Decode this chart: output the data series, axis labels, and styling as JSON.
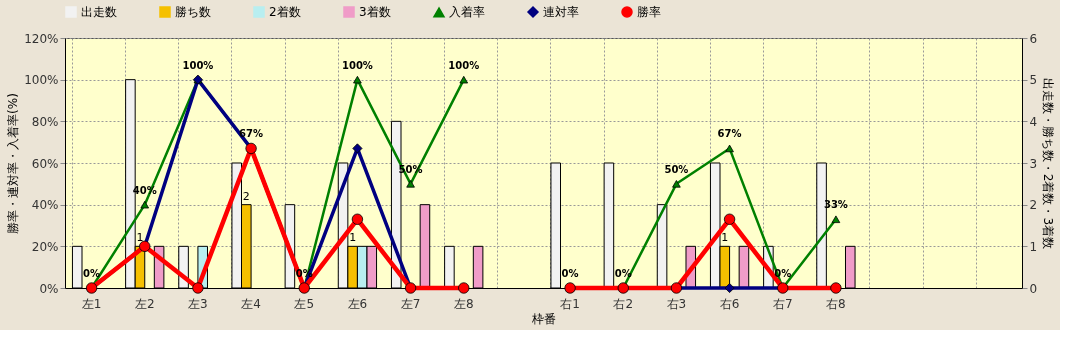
{
  "chart_data": {
    "type": "bar",
    "xlabel": "枠番",
    "ylabel": "勝率・連対率・入着率(%)",
    "y2label": "出走数・勝ち数・2着数・3着数",
    "categories": [
      "左1",
      "左2",
      "左3",
      "左4",
      "左5",
      "左6",
      "左7",
      "左8",
      null,
      "右1",
      "右2",
      "右3",
      "右6",
      "右7",
      "右8",
      null,
      null,
      null
    ],
    "series": [
      {
        "name": "出走数",
        "axis": "y2",
        "color": "#f2f2f2",
        "values": [
          1,
          5,
          1,
          3,
          2,
          3,
          4,
          1,
          null,
          3,
          3,
          2,
          3,
          1,
          3,
          null,
          null,
          null
        ]
      },
      {
        "name": "勝ち数",
        "axis": "y2",
        "color": "#f5c000",
        "values": [
          0,
          1,
          0,
          2,
          0,
          1,
          0,
          0,
          null,
          0,
          0,
          0,
          1,
          0,
          0,
          null,
          null,
          null
        ],
        "value_labels": [
          null,
          "1",
          null,
          "2",
          null,
          "1",
          null,
          null,
          null,
          null,
          null,
          null,
          "1",
          null,
          null,
          null,
          null,
          null
        ]
      },
      {
        "name": "2着数",
        "axis": "y2",
        "color": "#b8eef0",
        "values": [
          0,
          0,
          1,
          0,
          0,
          1,
          0,
          0,
          null,
          0,
          0,
          0,
          0,
          0,
          0,
          null,
          null,
          null
        ]
      },
      {
        "name": "3着数",
        "axis": "y2",
        "color": "#f09cc8",
        "values": [
          0,
          1,
          0,
          0,
          0,
          1,
          2,
          1,
          null,
          0,
          0,
          1,
          1,
          0,
          1,
          null,
          null,
          null
        ]
      },
      {
        "name": "入着率",
        "type": "line",
        "marker": "triangle",
        "color": "#008000",
        "values": [
          0,
          40,
          100,
          67,
          0,
          100,
          50,
          100,
          null,
          0,
          0,
          50,
          67,
          0,
          33,
          null,
          null,
          null
        ],
        "value_labels": [
          "0%",
          "40%",
          "100%",
          "67%",
          "0%",
          "100%",
          "50%",
          "100%",
          null,
          "0%",
          "0%",
          "50%",
          "67%",
          "0%",
          "33%",
          null,
          null,
          null
        ]
      },
      {
        "name": "連対率",
        "type": "line",
        "marker": "diamond",
        "color": "#000080",
        "values": [
          0,
          20,
          100,
          67,
          0,
          67,
          0,
          0,
          null,
          0,
          0,
          0,
          0,
          0,
          0,
          null,
          null,
          null
        ]
      },
      {
        "name": "勝率",
        "type": "line",
        "marker": "circle",
        "color": "#ff0000",
        "values": [
          0,
          20,
          0,
          67,
          0,
          33,
          0,
          0,
          null,
          0,
          0,
          0,
          33,
          0,
          0,
          null,
          null,
          null
        ]
      }
    ],
    "ylim": [
      0,
      120
    ],
    "yticks": [
      {
        "value": 0,
        "label": "0%"
      },
      {
        "value": 20,
        "label": "20%"
      },
      {
        "value": 40,
        "label": "40%"
      },
      {
        "value": 60,
        "label": "60%"
      },
      {
        "value": 80,
        "label": "80%"
      },
      {
        "value": 100,
        "label": "100%"
      },
      {
        "value": 120,
        "label": "120%"
      }
    ],
    "y2lim": [
      0,
      6
    ],
    "y2ticks": [
      0,
      1,
      2,
      3,
      4,
      5,
      6
    ],
    "grid": true,
    "legend": "top"
  }
}
